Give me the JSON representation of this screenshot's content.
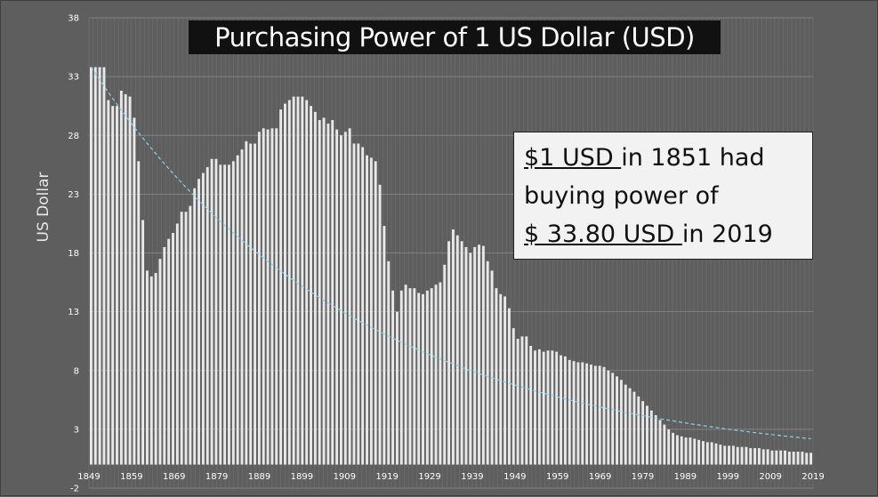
{
  "chart_data": {
    "type": "bar",
    "title": "Purchasing Power of 1 US Dollar (USD)",
    "ylabel": "US Dollar",
    "xlabel": "",
    "ylim": [
      -2,
      38
    ],
    "yticks": [
      -2,
      3,
      8,
      13,
      18,
      23,
      28,
      33,
      38
    ],
    "xticks": [
      1849,
      1859,
      1869,
      1879,
      1889,
      1899,
      1909,
      1919,
      1929,
      1939,
      1949,
      1959,
      1969,
      1979,
      1989,
      1999,
      2009,
      2019
    ],
    "x_start": 1849,
    "x_end": 2019,
    "grid": true,
    "series": [
      {
        "type": "bar",
        "values": [
          33.8,
          33.8,
          33.8,
          33.8,
          31.0,
          30.5,
          30.5,
          31.8,
          31.5,
          31.3,
          29.5,
          25.8,
          20.8,
          16.5,
          16.0,
          16.3,
          17.5,
          18.5,
          19.2,
          19.7,
          20.5,
          21.5,
          21.5,
          22.0,
          23.5,
          24.3,
          24.8,
          25.3,
          26.0,
          26.0,
          25.5,
          25.5,
          25.5,
          25.8,
          26.3,
          26.8,
          27.5,
          27.3,
          27.3,
          28.3,
          28.6,
          28.5,
          28.6,
          28.6,
          30.2,
          30.7,
          31.0,
          31.3,
          31.3,
          31.3,
          31.0,
          30.5,
          30.0,
          29.3,
          29.5,
          29.0,
          29.3,
          28.5,
          28.0,
          28.3,
          28.6,
          27.3,
          27.3,
          27.0,
          26.3,
          26.1,
          25.8,
          23.8,
          20.3,
          17.3,
          14.8,
          13.0,
          14.8,
          15.3,
          15.0,
          15.0,
          14.6,
          14.5,
          14.8,
          15.0,
          15.3,
          15.5,
          17.0,
          19.0,
          20.0,
          19.5,
          19.0,
          18.5,
          18.0,
          18.5,
          18.7,
          18.6,
          17.3,
          16.5,
          15.0,
          14.5,
          14.3,
          13.3,
          11.6,
          10.7,
          10.9,
          10.9,
          10.1,
          9.7,
          9.8,
          9.6,
          9.7,
          9.7,
          9.6,
          9.3,
          9.2,
          8.9,
          8.8,
          8.7,
          8.7,
          8.6,
          8.5,
          8.4,
          8.4,
          8.3,
          8.0,
          7.8,
          7.5,
          7.2,
          6.8,
          6.5,
          6.2,
          5.8,
          5.4,
          5.0,
          4.6,
          4.2,
          3.8,
          3.4,
          3.0,
          2.7,
          2.5,
          2.4,
          2.3,
          2.3,
          2.2,
          2.1,
          2.0,
          1.9,
          1.9,
          1.8,
          1.7,
          1.6,
          1.6,
          1.6,
          1.5,
          1.5,
          1.5,
          1.4,
          1.4,
          1.4,
          1.3,
          1.3,
          1.2,
          1.2,
          1.2,
          1.2,
          1.1,
          1.1,
          1.1,
          1.1,
          1.0,
          1.0
        ]
      },
      {
        "type": "trendline",
        "style": "dashed",
        "values": [
          33.8,
          2.2
        ]
      }
    ]
  },
  "annotation": {
    "l1a": "$1 USD ",
    "l1b": "in 1851 had",
    "l2": "buying power of",
    "l3a": "$ 33.80 USD ",
    "l3b": "in 2019"
  },
  "colors": {
    "background": "#5e5e5e",
    "bar": "#e8e8e8",
    "grid": "#8c8c8c",
    "trend": "#7fd8f0",
    "title_bg": "#111111"
  }
}
